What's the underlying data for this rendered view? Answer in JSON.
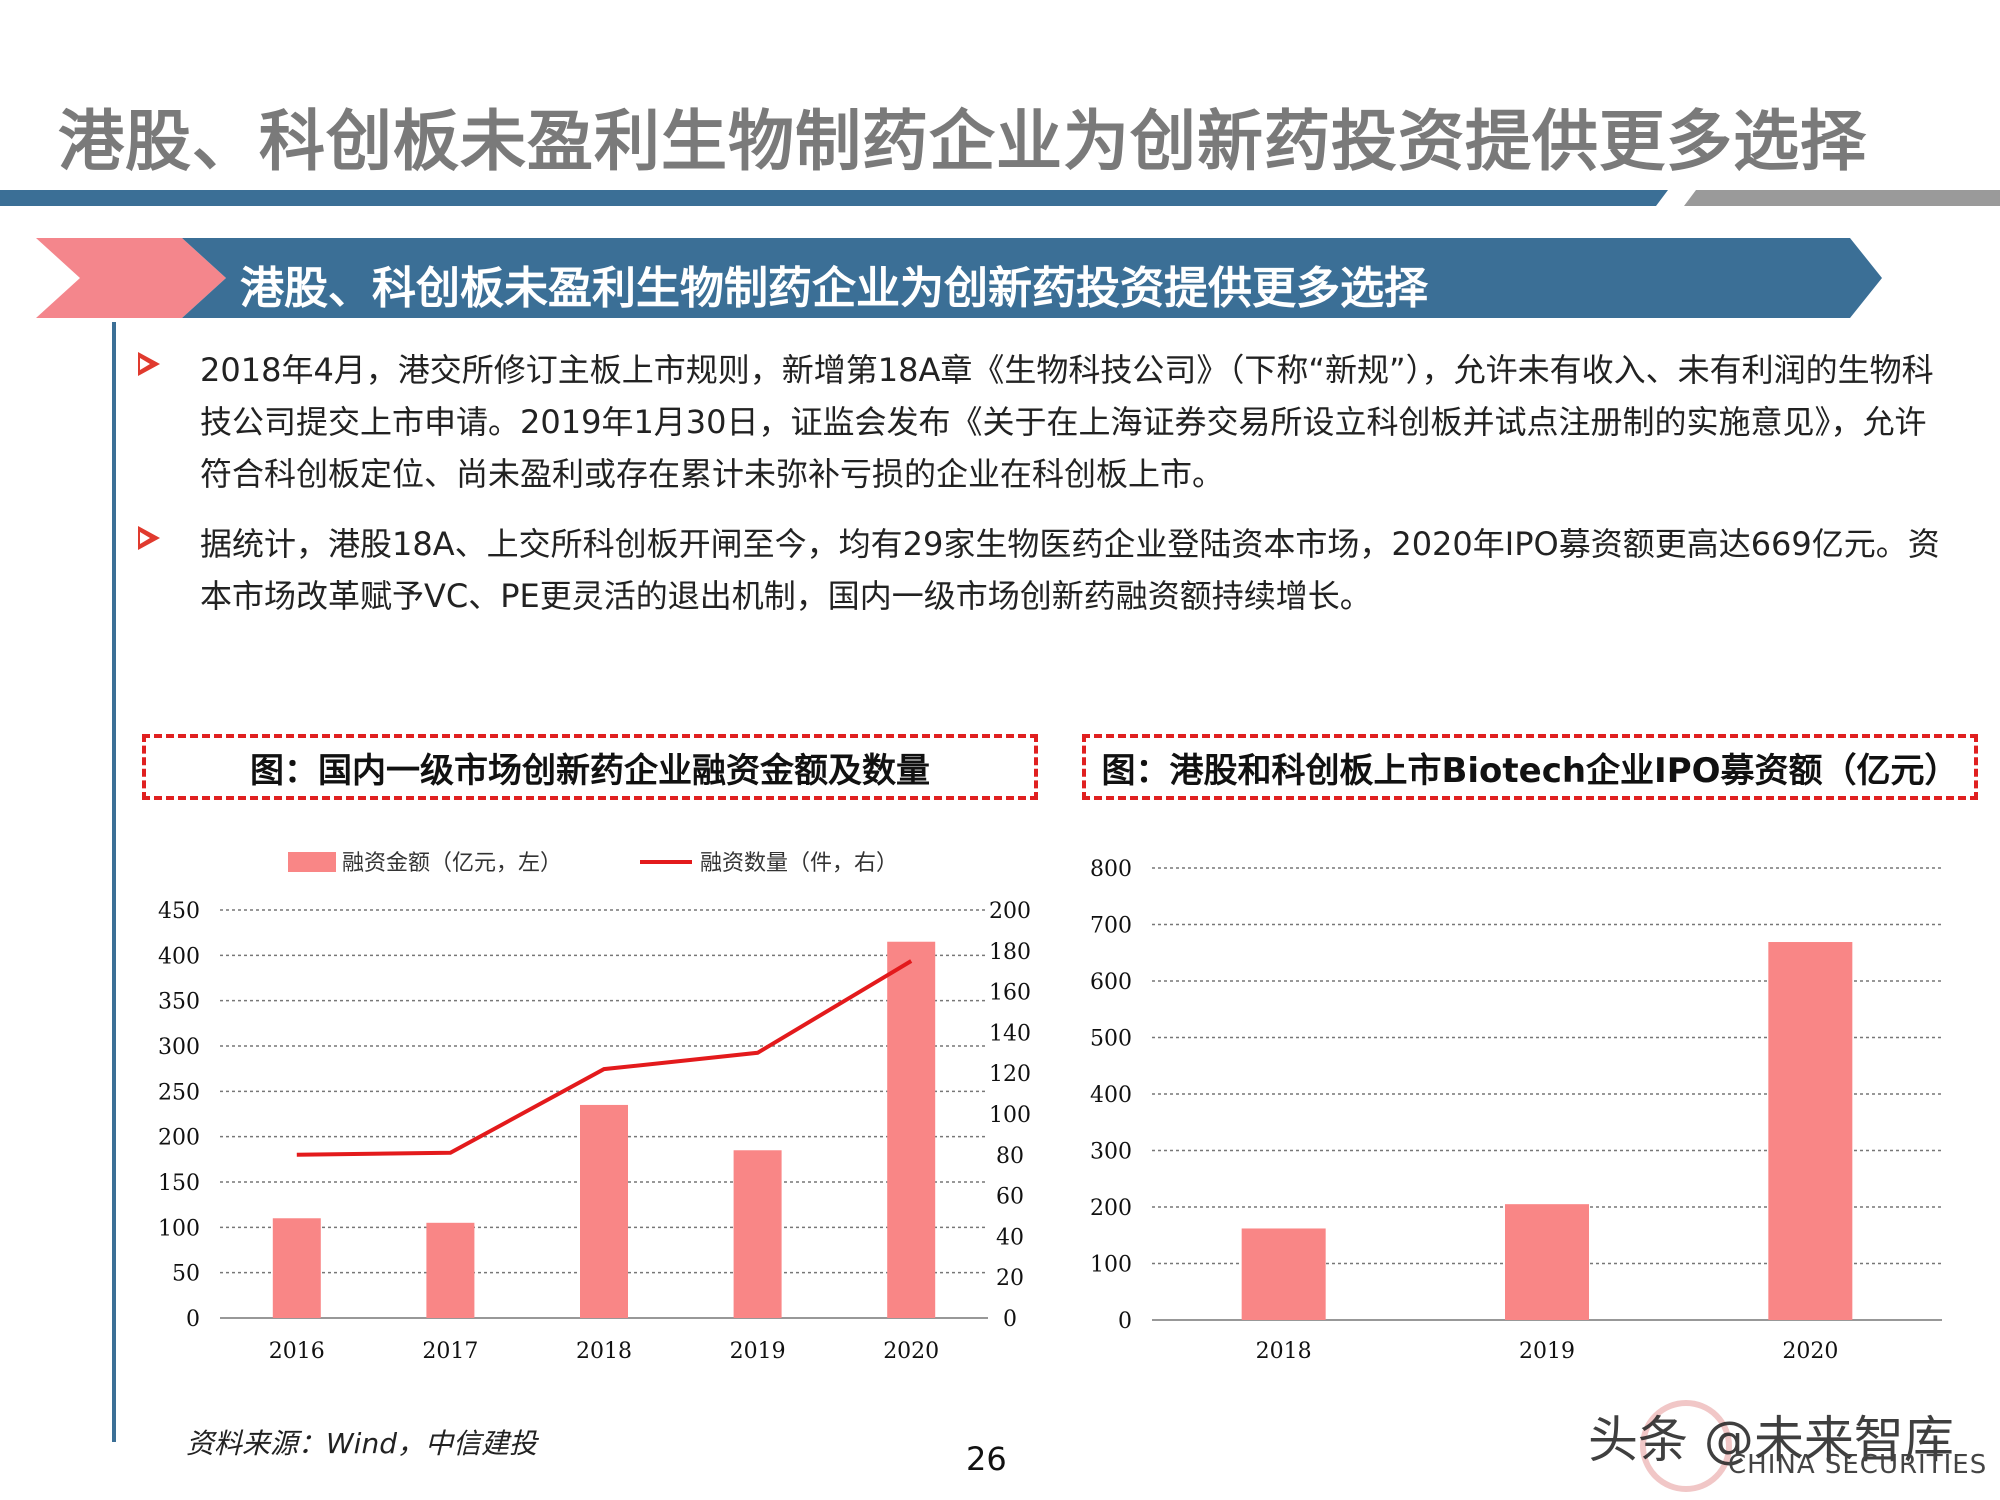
{
  "page": {
    "title": "港股、科创板未盈利生物制药企业为创新药投资提供更多选择",
    "banner": "港股、科创板未盈利生物制药企业为创新药投资提供更多选择",
    "bullets": [
      "2018年4月，港交所修订主板上市规则，新增第18A章《生物科技公司》（下称“新规”），允许未有收入、未有利润的生物科技公司提交上市申请。2019年1月30日，证监会发布《关于在上海证券交易所设立科创板并试点注册制的实施意见》，允许符合科创板定位、尚未盈利或存在累计未弥补亏损的企业在科创板上市。",
      "据统计，港股18A、上交所科创板开闸至今，均有29家生物医药企业登陆资本市场，2020年IPO募资额更高达669亿元。资本市场改革赋予VC、PE更灵活的退出机制，国内一级市场创新药融资额持续增长。"
    ],
    "source": "资料来源：Wind，中信建投",
    "page_number": "26",
    "watermark": "头条 @未来智库",
    "watermark_sub": "CHINA SECURITIES"
  },
  "colors": {
    "title_gray": "#7a7a7a",
    "rule_blue": "#3b6f96",
    "banner_blue": "#3b6f96",
    "banner_pink": "#f4868c",
    "bar_pink": "#f98686",
    "line_red": "#e31a1c",
    "dash_red": "#e02020"
  },
  "chart_data": [
    {
      "type": "bar",
      "title": "图：国内一级市场创新药企业融资金额及数量",
      "categories": [
        "2016",
        "2017",
        "2018",
        "2019",
        "2020"
      ],
      "series": [
        {
          "name": "融资金额（亿元，左）",
          "type": "bar",
          "axis": "left",
          "values": [
            110,
            105,
            235,
            185,
            415
          ]
        },
        {
          "name": "融资数量（件，右）",
          "type": "line",
          "axis": "right",
          "values": [
            80,
            81,
            122,
            130,
            175
          ]
        }
      ],
      "ylim_left": [
        0,
        450
      ],
      "yticks_left": [
        "0",
        "50",
        "100",
        "150",
        "200",
        "250",
        "300",
        "350",
        "400",
        "450"
      ],
      "ylim_right": [
        0,
        200
      ],
      "yticks_right": [
        "0",
        "20",
        "40",
        "60",
        "80",
        "100",
        "120",
        "140",
        "160",
        "180",
        "200"
      ],
      "grid": true,
      "legend": "top"
    },
    {
      "type": "bar",
      "title": "图：港股和科创板上市Biotech企业IPO募资额（亿元）",
      "categories": [
        "2018",
        "2019",
        "2020"
      ],
      "values": [
        162,
        205,
        669
      ],
      "ylim": [
        0,
        800
      ],
      "yticks": [
        "0",
        "100",
        "200",
        "300",
        "400",
        "500",
        "600",
        "700",
        "800"
      ],
      "grid": true
    }
  ]
}
